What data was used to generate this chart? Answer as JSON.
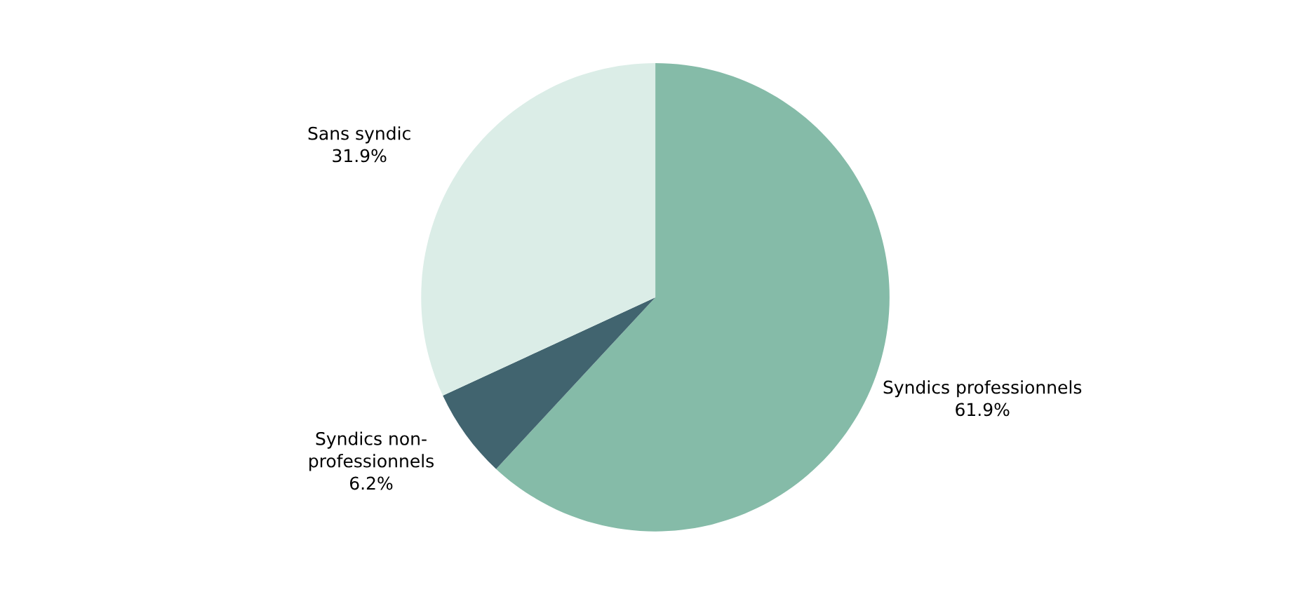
{
  "chart_data": {
    "type": "pie",
    "categories": [
      "Syndics professionnels",
      "Syndics non-\nprofessionnels",
      "Sans syndic"
    ],
    "values": [
      61.9,
      6.2,
      31.9
    ],
    "value_labels": [
      "61.9%",
      "6.2%",
      "31.9%"
    ],
    "colors": [
      "#85bba8",
      "#41646f",
      "#dbede7"
    ]
  }
}
